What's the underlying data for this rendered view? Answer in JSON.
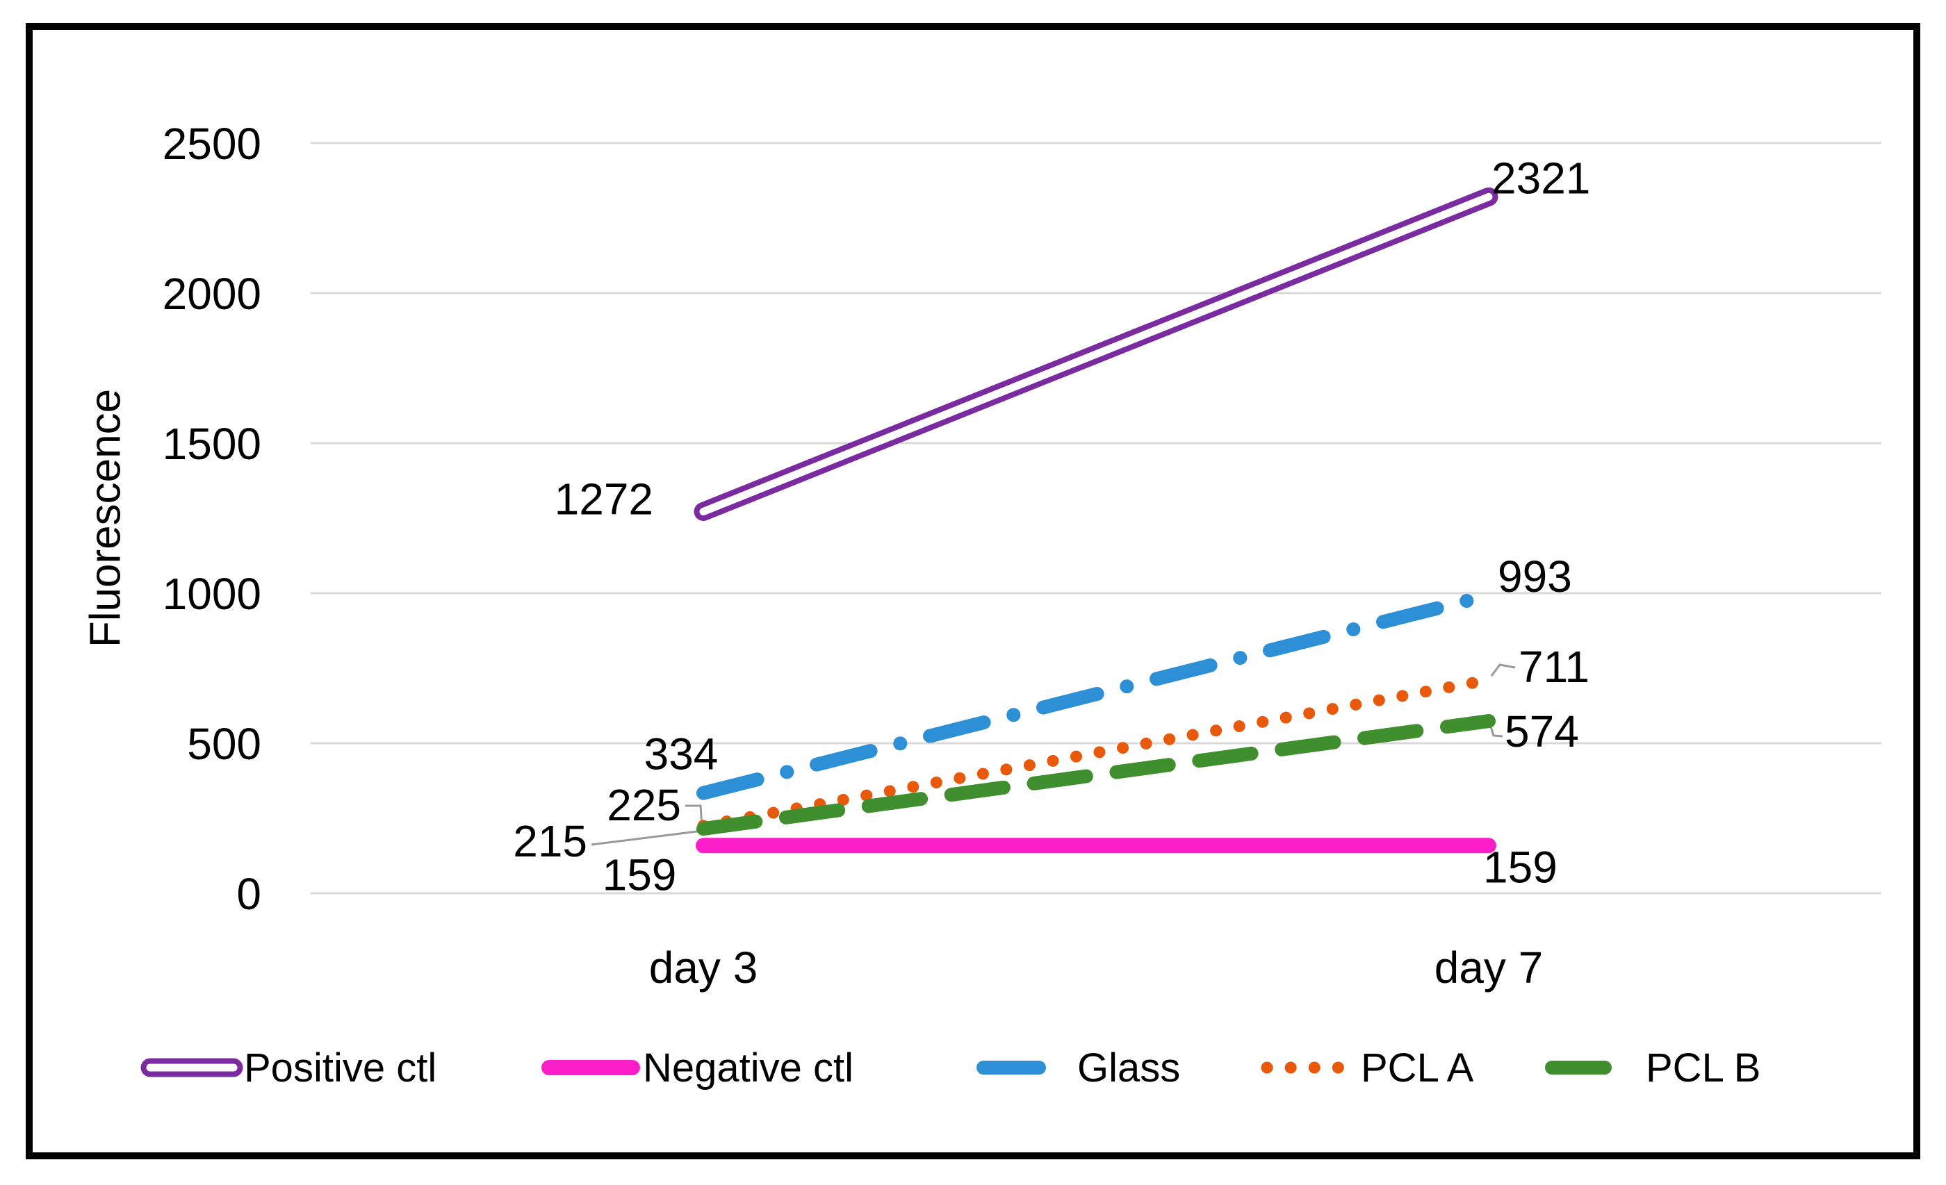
{
  "figure": {
    "background": "#ffffff",
    "border_color": "#000000",
    "gridline_color": "#D9D9D9",
    "leader_line_color": "#999999",
    "text_color": "#000000"
  },
  "chart_data": {
    "type": "line",
    "title": "",
    "xlabel": "",
    "ylabel": "Fluorescence",
    "categories": [
      "day 3",
      "day 7"
    ],
    "ylim": [
      0,
      2500
    ],
    "yticks": [
      0,
      500,
      1000,
      1500,
      2000,
      2500
    ],
    "grid": true,
    "legend_position": "bottom",
    "data_labels_shown": true,
    "series": [
      {
        "name": "Positive ctl",
        "values": [
          1272,
          2321
        ],
        "color": "#7A2BA0",
        "style": "double"
      },
      {
        "name": "Negative ctl",
        "values": [
          159,
          159
        ],
        "color": "#FC1EC9",
        "style": "solid"
      },
      {
        "name": "Glass",
        "values": [
          334,
          993
        ],
        "color": "#2D8FD5",
        "style": "dash-dot"
      },
      {
        "name": "PCL A",
        "values": [
          225,
          711
        ],
        "color": "#E8590C",
        "style": "dotted"
      },
      {
        "name": "PCL B",
        "values": [
          215,
          574
        ],
        "color": "#3F8F2F",
        "style": "long-dash"
      }
    ]
  }
}
